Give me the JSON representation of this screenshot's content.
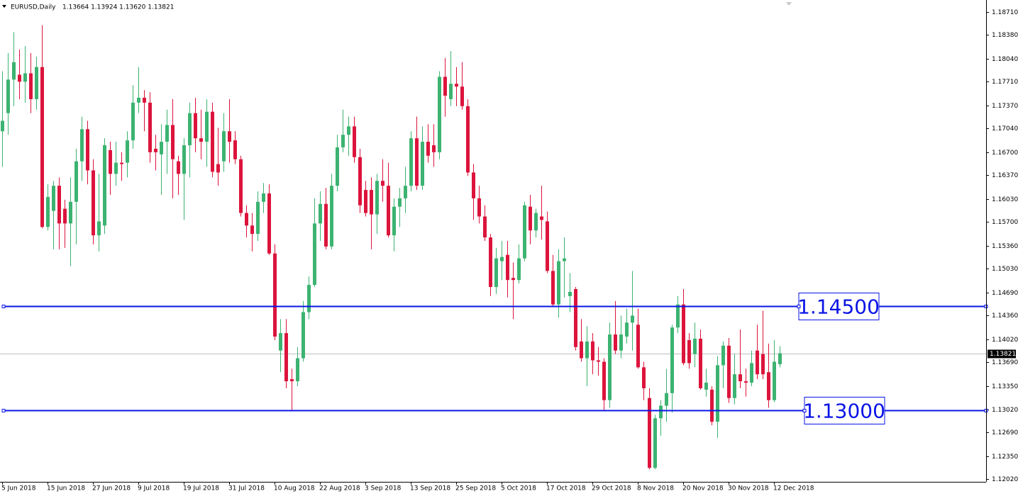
{
  "chart_data": {
    "type": "candlestick",
    "title": "EURUSD,Daily",
    "ohlc_text": "1.13664 1.13924 1.13620 1.13821",
    "up_color": "#3cb371",
    "down_color": "#dc143c",
    "level_color": "#0a14e6",
    "ylim": [
      1.1198,
      1.1888
    ],
    "yticks": [
      {
        "value": 1.1871,
        "label": "1.18710"
      },
      {
        "value": 1.1838,
        "label": "1.18380"
      },
      {
        "value": 1.1804,
        "label": "1.18040"
      },
      {
        "value": 1.1771,
        "label": "1.17710"
      },
      {
        "value": 1.1737,
        "label": "1.17370"
      },
      {
        "value": 1.1704,
        "label": "1.17040"
      },
      {
        "value": 1.167,
        "label": "1.16700"
      },
      {
        "value": 1.1637,
        "label": "1.16370"
      },
      {
        "value": 1.1603,
        "label": "1.16030"
      },
      {
        "value": 1.157,
        "label": "1.15700"
      },
      {
        "value": 1.1536,
        "label": "1.15360"
      },
      {
        "value": 1.1503,
        "label": "1.15030"
      },
      {
        "value": 1.1469,
        "label": "1.14690"
      },
      {
        "value": 1.1436,
        "label": "1.14360"
      },
      {
        "value": 1.1402,
        "label": "1.14020"
      },
      {
        "value": 1.1369,
        "label": "1.13690"
      },
      {
        "value": 1.1335,
        "label": "1.13350"
      },
      {
        "value": 1.1302,
        "label": "1.13020"
      },
      {
        "value": 1.1269,
        "label": "1.12690"
      },
      {
        "value": 1.1235,
        "label": "1.12350"
      },
      {
        "value": 1.1202,
        "label": "1.12020"
      }
    ],
    "levels": [
      {
        "value": 1.145,
        "label": "1.14500"
      },
      {
        "value": 1.13,
        "label": "1.13000"
      }
    ],
    "current_price": {
      "value": 1.13821,
      "label": "1.13821"
    },
    "categories": [
      "5 Jun 2018",
      null,
      null,
      null,
      null,
      null,
      null,
      null,
      "15 Jun 2018",
      null,
      null,
      null,
      null,
      null,
      null,
      null,
      "27 Jun 2018",
      null,
      null,
      null,
      null,
      null,
      null,
      null,
      "9 Jul 2018",
      null,
      null,
      null,
      null,
      null,
      null,
      null,
      "19 Jul 2018",
      null,
      null,
      null,
      null,
      null,
      null,
      null,
      "31 Jul 2018",
      null,
      null,
      null,
      null,
      null,
      null,
      null,
      "10 Aug 2018",
      null,
      null,
      null,
      null,
      null,
      null,
      null,
      "22 Aug 2018",
      null,
      null,
      null,
      null,
      null,
      null,
      null,
      "3 Sep 2018",
      null,
      null,
      null,
      null,
      null,
      null,
      null,
      "13 Sep 2018",
      null,
      null,
      null,
      null,
      null,
      null,
      null,
      "25 Sep 2018",
      null,
      null,
      null,
      null,
      null,
      null,
      null,
      "5 Oct 2018",
      null,
      null,
      null,
      null,
      null,
      null,
      null,
      "17 Oct 2018",
      null,
      null,
      null,
      null,
      null,
      null,
      null,
      "29 Oct 2018",
      null,
      null,
      null,
      null,
      null,
      null,
      null,
      "8 Nov 2018",
      null,
      null,
      null,
      null,
      null,
      null,
      null,
      "20 Nov 2018",
      null,
      null,
      null,
      null,
      null,
      null,
      null,
      "30 Nov 2018",
      null,
      null,
      null,
      null,
      null,
      null,
      null,
      "12 Dec 2018",
      null
    ],
    "open": [
      1.17,
      1.1726,
      1.1774,
      1.1781,
      1.1771,
      1.1783,
      1.1746,
      1.1792,
      1.1563,
      1.1586,
      1.1622,
      1.1589,
      1.1568,
      1.1599,
      1.1657,
      1.1703,
      1.1644,
      1.1551,
      1.1565,
      1.1673,
      1.1639,
      1.1655,
      1.1655,
      1.1687,
      1.1741,
      1.1748,
      1.1741,
      1.1675,
      1.1667,
      1.1685,
      1.1709,
      1.1657,
      1.1639,
      1.168,
      1.1726,
      1.169,
      1.1685,
      1.1728,
      1.1653,
      1.1657,
      1.17,
      1.1687,
      1.166,
      1.1583,
      1.1565,
      1.1553,
      1.1599,
      1.1611,
      1.1525,
      1.1386,
      1.1411,
      1.1345,
      1.1342,
      1.1375,
      1.1441,
      1.148,
      1.1568,
      1.1596,
      1.1535,
      1.1622,
      1.1677,
      1.1695,
      1.1707,
      1.1663,
      1.1616,
      1.1616,
      1.1581,
      1.1629,
      1.1622,
      1.1551,
      1.1592,
      1.1604,
      1.1622,
      1.169,
      1.1622,
      1.1685,
      1.168,
      1.167,
      1.1778,
      1.1746,
      1.1768,
      1.1764,
      1.1736,
      1.1641,
      1.1604,
      1.1578,
      1.1548,
      1.1477,
      1.1514,
      1.1523,
      1.149,
      1.1487,
      1.1518,
      1.1592,
      1.1558,
      1.1578,
      1.1571,
      1.15,
      1.1452,
      1.1514,
      1.1464,
      1.1474,
      1.1399,
      1.1375,
      1.1399,
      1.1372,
      1.137,
      1.1315,
      1.1409,
      1.1386,
      1.1406,
      1.1426,
      1.1423,
      1.1362,
      1.1318,
      1.1218,
      1.1289,
      1.1307,
      1.1325,
      1.1419,
      1.1452,
      1.1401,
      1.1381,
      1.1403,
      1.133,
      1.133,
      1.1284,
      1.1365,
      1.1393,
      1.1318,
      1.1352,
      1.1342,
      1.134,
      1.1386,
      1.1381,
      1.1355,
      1.1315,
      1.13664
    ],
    "high": [
      1.1786,
      1.1812,
      1.1842,
      1.1817,
      1.1822,
      1.1812,
      1.1807,
      1.1852,
      1.1624,
      1.1629,
      1.1634,
      1.1602,
      1.1634,
      1.1675,
      1.1721,
      1.1715,
      1.166,
      1.1639,
      1.169,
      1.1685,
      1.1685,
      1.167,
      1.17,
      1.1766,
      1.1792,
      1.1759,
      1.1756,
      1.1695,
      1.171,
      1.1731,
      1.1746,
      1.1665,
      1.169,
      1.1741,
      1.1748,
      1.1731,
      1.1746,
      1.1741,
      1.1705,
      1.1726,
      1.1746,
      1.17,
      1.1665,
      1.1594,
      1.1583,
      1.1614,
      1.1626,
      1.1624,
      1.1538,
      1.1431,
      1.1431,
      1.136,
      1.1391,
      1.1457,
      1.1492,
      1.1604,
      1.1614,
      1.1619,
      1.1639,
      1.1695,
      1.1731,
      1.1721,
      1.1721,
      1.1675,
      1.1629,
      1.1634,
      1.1639,
      1.166,
      1.1655,
      1.1604,
      1.1619,
      1.1649,
      1.17,
      1.1721,
      1.1707,
      1.171,
      1.171,
      1.1786,
      1.1805,
      1.1815,
      1.1792,
      1.1799,
      1.1746,
      1.1653,
      1.1622,
      1.1594,
      1.1553,
      1.1533,
      1.1543,
      1.1543,
      1.1512,
      1.1538,
      1.1599,
      1.1609,
      1.1589,
      1.1622,
      1.1585,
      1.1523,
      1.1531,
      1.1548,
      1.1497,
      1.1477,
      1.1431,
      1.1421,
      1.1411,
      1.1391,
      1.1375,
      1.1426,
      1.1457,
      1.1436,
      1.1446,
      1.15,
      1.1446,
      1.137,
      1.1332,
      1.1294,
      1.1315,
      1.136,
      1.1423,
      1.1464,
      1.1474,
      1.1411,
      1.1426,
      1.1416,
      1.136,
      1.1335,
      1.1378,
      1.1399,
      1.1404,
      1.1381,
      1.1416,
      1.136,
      1.1386,
      1.1423,
      1.1443,
      1.1396,
      1.1401,
      1.13924
    ],
    "low": [
      1.1649,
      1.1695,
      1.1736,
      1.1746,
      1.1741,
      1.1726,
      1.1731,
      1.1561,
      1.1558,
      1.1531,
      1.1531,
      1.1533,
      1.1507,
      1.1538,
      1.1629,
      1.1624,
      1.1538,
      1.1528,
      1.1553,
      1.1609,
      1.1622,
      1.1629,
      1.1634,
      1.1675,
      1.1726,
      1.17,
      1.1655,
      1.1644,
      1.1609,
      1.1639,
      1.1604,
      1.1609,
      1.1573,
      1.1634,
      1.167,
      1.166,
      1.1649,
      1.1634,
      1.1622,
      1.1642,
      1.1655,
      1.1653,
      1.1578,
      1.1548,
      1.1528,
      1.1543,
      1.1583,
      1.1523,
      1.1401,
      1.1355,
      1.1332,
      1.1301,
      1.1335,
      1.137,
      1.1431,
      1.1477,
      1.1543,
      1.1531,
      1.1531,
      1.1614,
      1.167,
      1.1665,
      1.1655,
      1.1583,
      1.1578,
      1.1531,
      1.1553,
      1.1599,
      1.1548,
      1.1528,
      1.1563,
      1.1583,
      1.1614,
      1.1616,
      1.1616,
      1.1655,
      1.1649,
      1.166,
      1.1721,
      1.1736,
      1.1736,
      1.1731,
      1.1636,
      1.1573,
      1.1568,
      1.1543,
      1.1464,
      1.1467,
      1.1487,
      1.1462,
      1.1431,
      1.1482,
      1.1514,
      1.1538,
      1.1548,
      1.1545,
      1.1497,
      1.145,
      1.1433,
      1.1462,
      1.1441,
      1.1386,
      1.137,
      1.1335,
      1.1352,
      1.135,
      1.1301,
      1.1304,
      1.1381,
      1.1375,
      1.1396,
      1.1386,
      1.136,
      1.1315,
      1.1216,
      1.1216,
      1.1264,
      1.1284,
      1.1297,
      1.1411,
      1.1365,
      1.136,
      1.1362,
      1.133,
      1.132,
      1.1279,
      1.1261,
      1.1332,
      1.1311,
      1.1309,
      1.1332,
      1.132,
      1.1335,
      1.1345,
      1.1345,
      1.1304,
      1.1312,
      1.1362
    ],
    "close": [
      1.1715,
      1.1774,
      1.1799,
      1.1771,
      1.1783,
      1.1746,
      1.1792,
      1.1563,
      1.1606,
      1.1622,
      1.1568,
      1.1568,
      1.1599,
      1.1657,
      1.1703,
      1.1644,
      1.1551,
      1.1571,
      1.168,
      1.1639,
      1.1655,
      1.1653,
      1.1687,
      1.1741,
      1.1748,
      1.1741,
      1.167,
      1.167,
      1.1685,
      1.1709,
      1.166,
      1.1639,
      1.168,
      1.1726,
      1.169,
      1.1685,
      1.1728,
      1.1642,
      1.1641,
      1.17,
      1.1685,
      1.166,
      1.1583,
      1.1565,
      1.1553,
      1.1599,
      1.1611,
      1.1525,
      1.1406,
      1.1411,
      1.1342,
      1.1342,
      1.1375,
      1.1441,
      1.148,
      1.1568,
      1.1596,
      1.1535,
      1.1622,
      1.1677,
      1.1695,
      1.1707,
      1.1663,
      1.1594,
      1.1583,
      1.1581,
      1.1629,
      1.1622,
      1.1551,
      1.1592,
      1.1604,
      1.1622,
      1.169,
      1.1622,
      1.1685,
      1.1665,
      1.167,
      1.1778,
      1.1751,
      1.1768,
      1.1764,
      1.1736,
      1.1641,
      1.1604,
      1.1578,
      1.1548,
      1.1477,
      1.1518,
      1.152,
      1.1487,
      1.1487,
      1.1518,
      1.1594,
      1.1558,
      1.1583,
      1.1573,
      1.15,
      1.1452,
      1.1514,
      1.1518,
      1.147,
      1.1391,
      1.1375,
      1.1399,
      1.1372,
      1.137,
      1.1315,
      1.1409,
      1.1386,
      1.1409,
      1.1426,
      1.1436,
      1.1362,
      1.1332,
      1.1218,
      1.1289,
      1.1307,
      1.1325,
      1.1419,
      1.1452,
      1.1368,
      1.1368,
      1.1403,
      1.1332,
      1.134,
      1.1284,
      1.1365,
      1.1393,
      1.1318,
      1.1352,
      1.1342,
      1.134,
      1.1368,
      1.1352,
      1.1352,
      1.1315,
      1.137,
      1.13821
    ]
  }
}
